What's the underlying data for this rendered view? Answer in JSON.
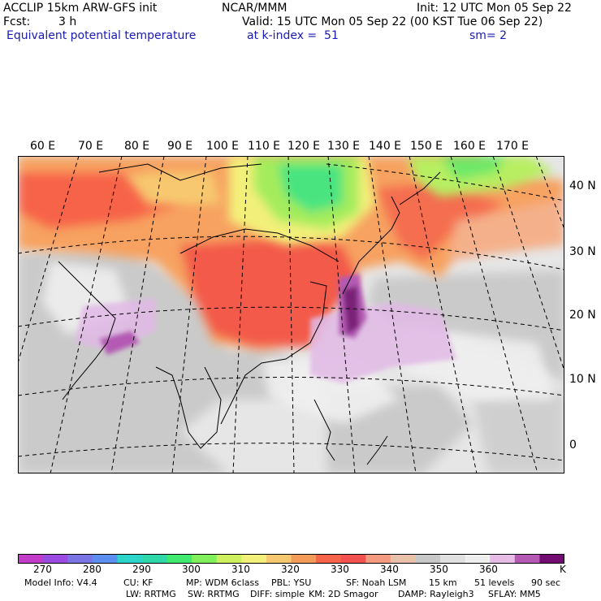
{
  "header": {
    "model": "ACCLIP 15km ARW-GFS init",
    "center": "NCAR/MMM",
    "init": "Init: 12 UTC Mon 05 Sep 22",
    "fcst_label": "Fcst:",
    "fcst_value": "3 h",
    "valid": "Valid: 15 UTC Mon 05 Sep 22 (00 KST Tue 06 Sep 22)",
    "field": "Equivalent potential temperature",
    "level": "at k-index =  51",
    "smooth": "sm= 2"
  },
  "map": {
    "longitude_labels": [
      "60 E",
      "70 E",
      "80 E",
      "90 E",
      "100 E",
      "110 E",
      "120 E",
      "130 E",
      "140 E",
      "150 E",
      "160 E",
      "170 E"
    ],
    "latitude_labels": [
      "40 N",
      "30 N",
      "20 N",
      "10 N",
      "0"
    ]
  },
  "colorbar": {
    "colors": [
      "#c23cc8",
      "#9b4be0",
      "#7a74e4",
      "#5d8ff0",
      "#2dd4c8",
      "#2ed8a8",
      "#3fe86e",
      "#7ff05a",
      "#cff05e",
      "#f3f07a",
      "#f7c870",
      "#f39b5a",
      "#f7644a",
      "#f35050",
      "#f49a80",
      "#e9c1a9",
      "#c8c8c8",
      "#e0e0e0",
      "#efefef",
      "#e6bbe6",
      "#b45ab4",
      "#730d73"
    ],
    "tick_labels": [
      "270",
      "280",
      "290",
      "300",
      "310",
      "320",
      "330",
      "340",
      "350",
      "360"
    ],
    "units": "K"
  },
  "model_info": {
    "line1": [
      "Model Info: V4.4",
      "CU: KF",
      "MP: WDM 6class",
      "PBL: YSU",
      "SF: Noah LSM",
      "15 km",
      "51 levels",
      "90 sec"
    ],
    "line2": [
      "LW: RRTMG",
      "SW: RRTMG",
      "DIFF: simple",
      "KM: 2D Smagor",
      "DAMP: Rayleigh3",
      "SFLAY: MM5"
    ]
  }
}
